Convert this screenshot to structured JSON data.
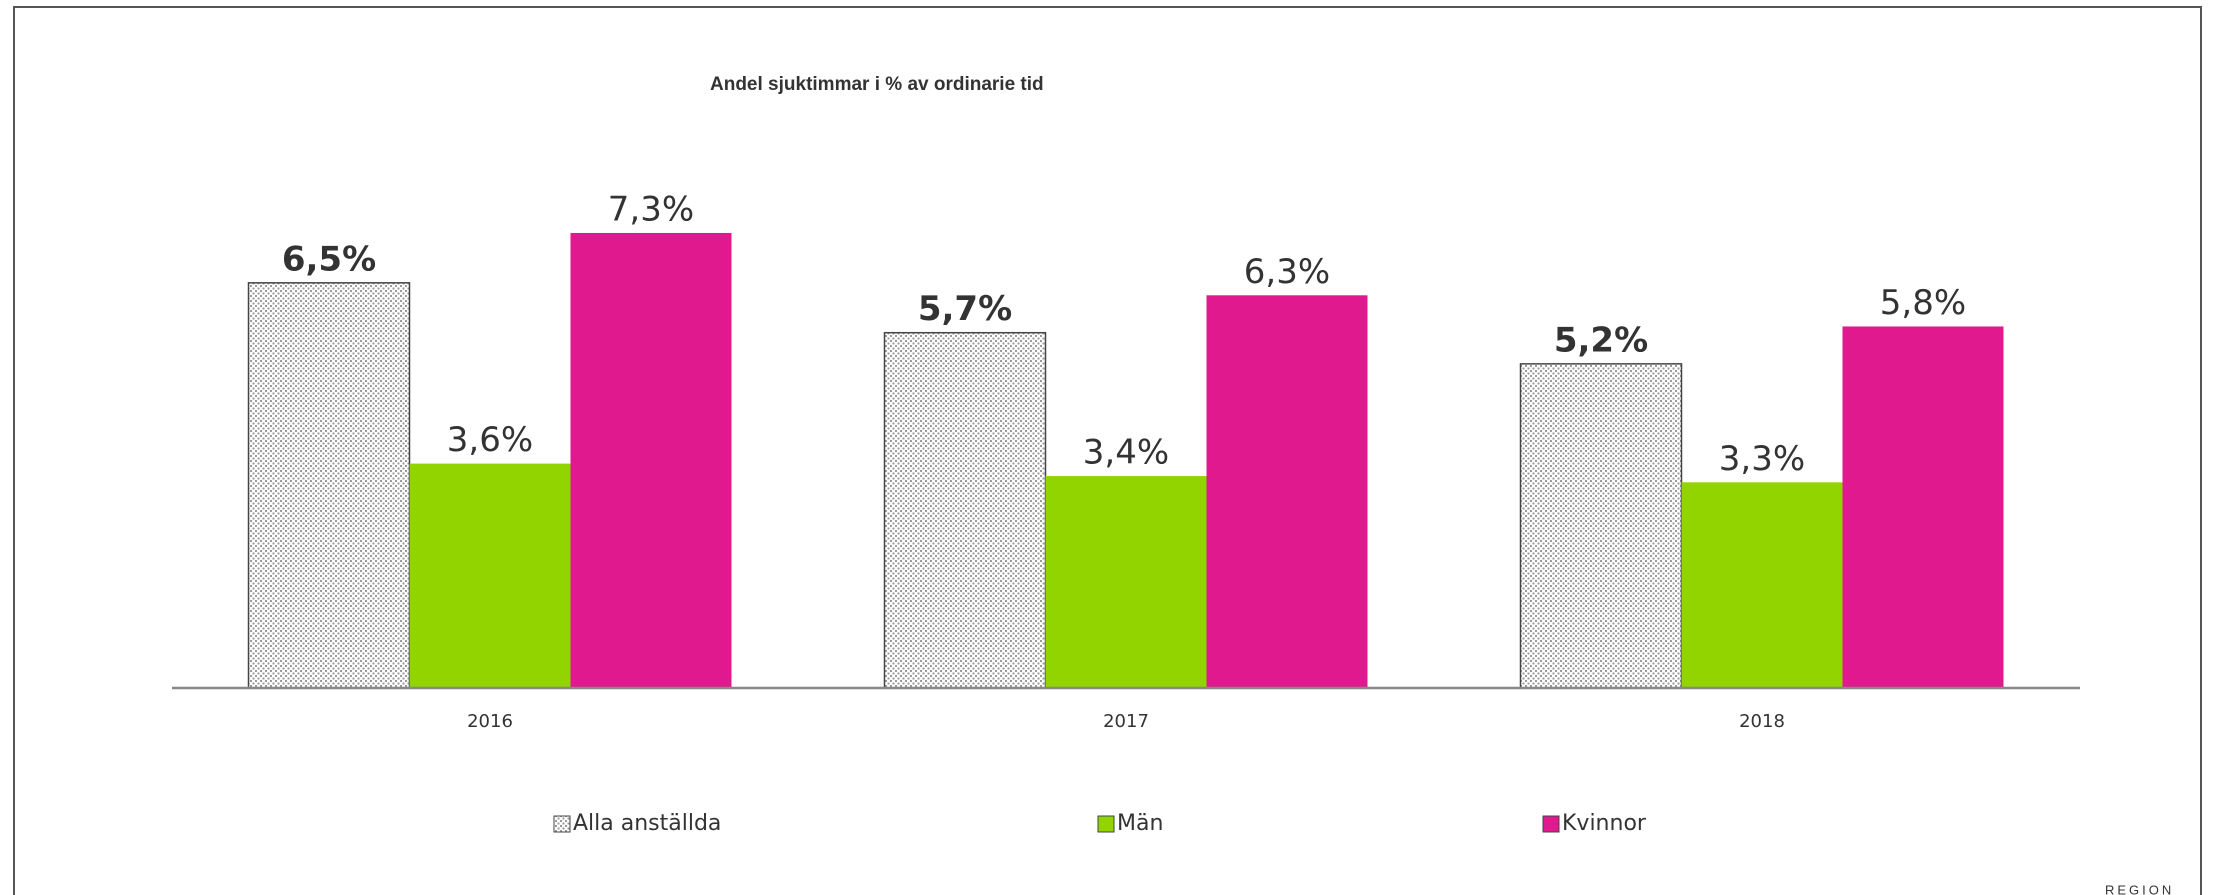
{
  "chart_data": {
    "type": "bar",
    "title": "Andel sjuktimmar i % av ordinarie tid",
    "categories": [
      "2016",
      "2017",
      "2018"
    ],
    "series": [
      {
        "name": "Alla anställda",
        "color": "#d9d9d9",
        "values": [
          6.5,
          5.7,
          5.2
        ],
        "value_labels": [
          "6,5%",
          "5,7%",
          "5,2%"
        ]
      },
      {
        "name": "Män",
        "color": "#92d400",
        "values": [
          3.6,
          3.4,
          3.3
        ],
        "value_labels": [
          "3,6%",
          "3,4%",
          "3,3%"
        ]
      },
      {
        "name": "Kvinnor",
        "color": "#e0198f",
        "values": [
          7.3,
          6.3,
          5.8
        ],
        "value_labels": [
          "7,3%",
          "6,3%",
          "5,8%"
        ]
      }
    ],
    "ylim": [
      0,
      9
    ],
    "legend": "bottom"
  },
  "logo_text": "REGION"
}
